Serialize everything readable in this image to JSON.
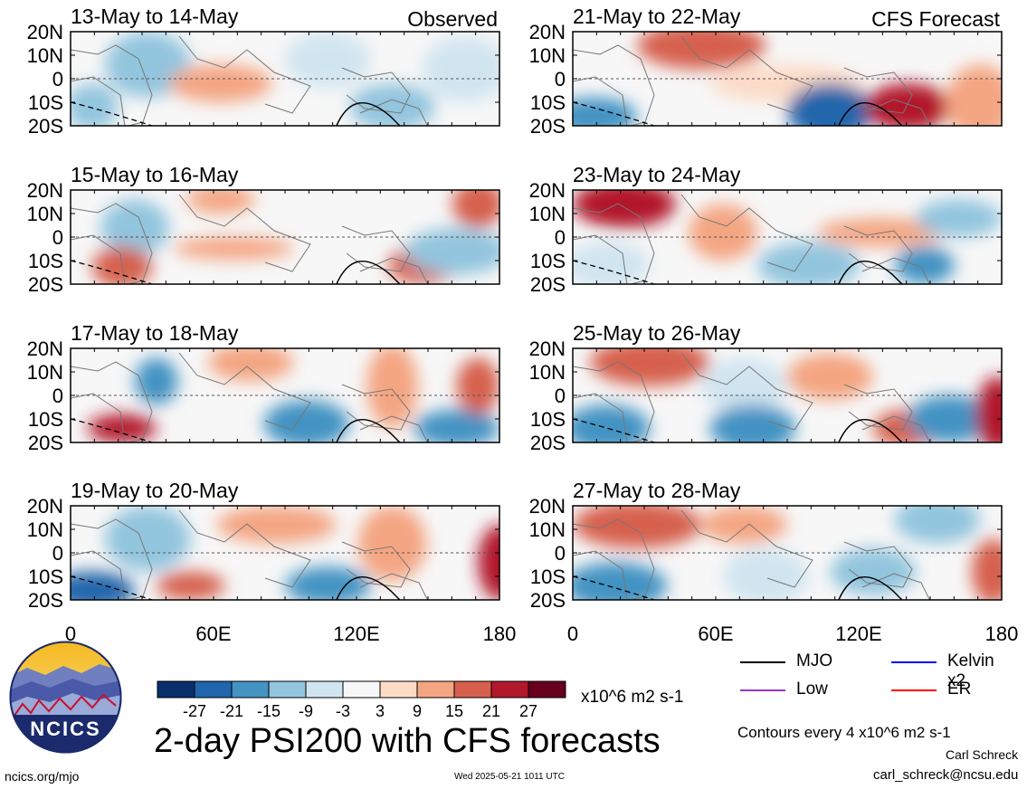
{
  "chart_data": {
    "type": "heatmap",
    "title": "2-day PSI200 with CFS forecasts",
    "units": "x10^6 m2 s-1",
    "x_ticks": [
      "0",
      "60E",
      "120E",
      "180"
    ],
    "y_ticks": [
      "20N",
      "10N",
      "0",
      "10S",
      "20S"
    ],
    "colorbar": {
      "tick_labels": [
        "-27",
        "-21",
        "-15",
        "-9",
        "-3",
        "3",
        "9",
        "15",
        "21",
        "27"
      ],
      "colors": [
        "#08306b",
        "#2166ac",
        "#4393c3",
        "#92c5de",
        "#d1e5f0",
        "#f7f7f7",
        "#fddbc7",
        "#f4a582",
        "#d6604d",
        "#b2182b",
        "#67001f"
      ]
    },
    "panels": [
      {
        "label": "13-May to 14-May",
        "tag": "Observed"
      },
      {
        "label": "15-May to 16-May",
        "tag": ""
      },
      {
        "label": "17-May to 18-May",
        "tag": ""
      },
      {
        "label": "19-May to 20-May",
        "tag": ""
      },
      {
        "label": "21-May to 22-May",
        "tag": "CFS Forecast"
      },
      {
        "label": "23-May to 24-May",
        "tag": ""
      },
      {
        "label": "25-May to 26-May",
        "tag": ""
      },
      {
        "label": "27-May to 28-May",
        "tag": ""
      }
    ],
    "legend": [
      {
        "label": "MJO",
        "color": "#000000"
      },
      {
        "label": "Kelvin x2",
        "color": "#0000ff"
      },
      {
        "label": "Low",
        "color": "#9933cc"
      },
      {
        "label": "ER",
        "color": "#ff0000"
      }
    ],
    "contour_note": "Contours every 4 x10^6 m2 s-1"
  },
  "logo": {
    "text": "NCICS"
  },
  "footer": {
    "site": "ncics.org/mjo",
    "timestamp": "Wed 2025-05-21 1011 UTC",
    "author": "Carl Schreck",
    "email": "carl_schreck@ncsu.edu"
  }
}
